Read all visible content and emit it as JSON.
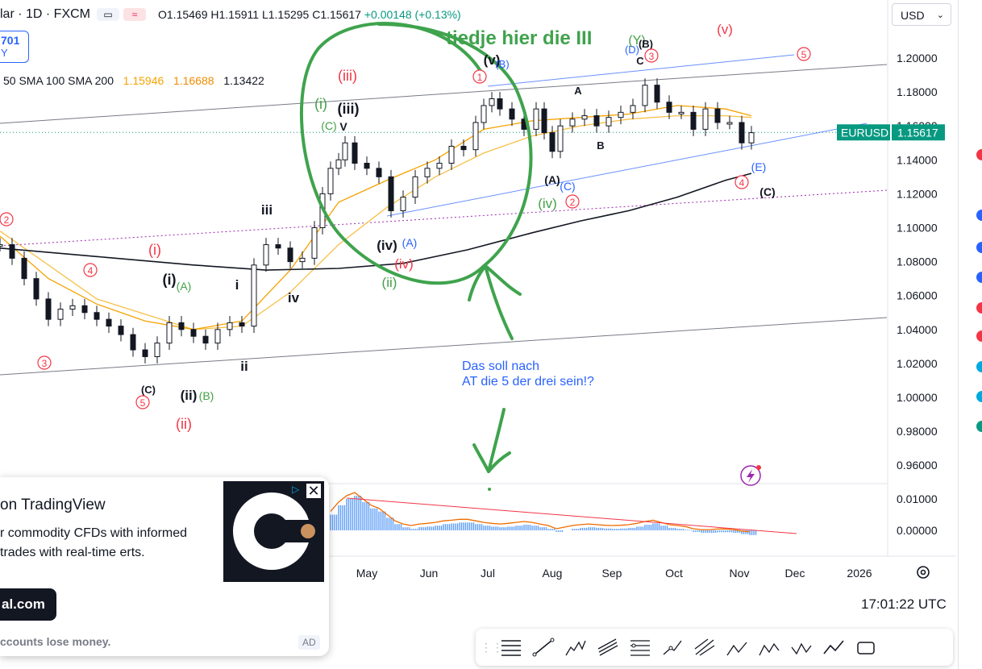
{
  "header": {
    "symbol": "lar · 1D · FXCM",
    "ohlc": "O1.15469  H1.15911  L1.15295  C1.15617",
    "change": "+0.00148 (+0.13%)",
    "badge_value": "701",
    "badge_sub": "Y",
    "sma_labels": "50 SMA 100 SMA 200",
    "sma_50": "1.15946",
    "sma_100": "1.16688",
    "sma_200": "1.13422"
  },
  "currency_select": "USD",
  "clock": "17:01:22 UTC",
  "colors": {
    "up": "#089981",
    "down": "#f23645",
    "candle": "#131722",
    "sma50": "#f5a200",
    "sma100": "#f7c04a",
    "sma200": "#131722",
    "wave_red": "#f23645",
    "wave_green": "#43a047",
    "wave_blue": "#2962ff",
    "annotation_green": "#3fa34d",
    "annotation_blue": "#2962ff"
  },
  "chart_data": {
    "type": "line",
    "symbol_label": "EURUSD",
    "last_price": "1.15617",
    "y_ticks": [
      "1.20000",
      "1.18000",
      "1.16000",
      "1.14000",
      "1.12000",
      "1.10000",
      "1.08000",
      "1.06000",
      "1.04000",
      "1.02000",
      "1.00000",
      "0.98000",
      "0.96000"
    ],
    "y_tick_values": [
      1.2,
      1.18,
      1.16,
      1.14,
      1.12,
      1.1,
      1.08,
      1.06,
      1.04,
      1.02,
      1.0,
      0.98,
      0.96
    ],
    "x_ticks": [
      "May",
      "Jun",
      "Jul",
      "Aug",
      "Sep",
      "Oct",
      "Nov",
      "Dec",
      "2026"
    ],
    "ylim": [
      0.95,
      1.225
    ],
    "price_series": [
      [
        0,
        1.09
      ],
      [
        15,
        1.082
      ],
      [
        30,
        1.07
      ],
      [
        45,
        1.058
      ],
      [
        60,
        1.046
      ],
      [
        75,
        1.052
      ],
      [
        90,
        1.054
      ],
      [
        105,
        1.05
      ],
      [
        120,
        1.046
      ],
      [
        135,
        1.042
      ],
      [
        150,
        1.037
      ],
      [
        165,
        1.028
      ],
      [
        180,
        1.024
      ],
      [
        195,
        1.032
      ],
      [
        210,
        1.044
      ],
      [
        225,
        1.04
      ],
      [
        240,
        1.036
      ],
      [
        255,
        1.032
      ],
      [
        270,
        1.04
      ],
      [
        285,
        1.044
      ],
      [
        300,
        1.042
      ],
      [
        315,
        1.078
      ],
      [
        330,
        1.09
      ],
      [
        345,
        1.088
      ],
      [
        360,
        1.08
      ],
      [
        375,
        1.082
      ],
      [
        390,
        1.1
      ],
      [
        400,
        1.12
      ],
      [
        410,
        1.135
      ],
      [
        420,
        1.14
      ],
      [
        428,
        1.15
      ],
      [
        440,
        1.138
      ],
      [
        455,
        1.135
      ],
      [
        470,
        1.13
      ],
      [
        485,
        1.11
      ],
      [
        500,
        1.118
      ],
      [
        515,
        1.13
      ],
      [
        530,
        1.135
      ],
      [
        545,
        1.138
      ],
      [
        560,
        1.148
      ],
      [
        575,
        1.146
      ],
      [
        590,
        1.162
      ],
      [
        600,
        1.172
      ],
      [
        610,
        1.176
      ],
      [
        620,
        1.17
      ],
      [
        635,
        1.164
      ],
      [
        650,
        1.158
      ],
      [
        665,
        1.17
      ],
      [
        675,
        1.156
      ],
      [
        685,
        1.145
      ],
      [
        695,
        1.16
      ],
      [
        710,
        1.164
      ],
      [
        725,
        1.166
      ],
      [
        740,
        1.16
      ],
      [
        755,
        1.165
      ],
      [
        770,
        1.168
      ],
      [
        785,
        1.172
      ],
      [
        800,
        1.184
      ],
      [
        815,
        1.174
      ],
      [
        830,
        1.168
      ],
      [
        845,
        1.168
      ],
      [
        860,
        1.158
      ],
      [
        875,
        1.17
      ],
      [
        890,
        1.162
      ],
      [
        905,
        1.162
      ],
      [
        920,
        1.15
      ],
      [
        932,
        1.156
      ]
    ],
    "sma50_series": [
      [
        0,
        1.095
      ],
      [
        60,
        1.07
      ],
      [
        120,
        1.055
      ],
      [
        180,
        1.045
      ],
      [
        240,
        1.04
      ],
      [
        300,
        1.045
      ],
      [
        360,
        1.075
      ],
      [
        420,
        1.115
      ],
      [
        480,
        1.128
      ],
      [
        540,
        1.14
      ],
      [
        600,
        1.158
      ],
      [
        660,
        1.163
      ],
      [
        720,
        1.165
      ],
      [
        780,
        1.167
      ],
      [
        840,
        1.172
      ],
      [
        900,
        1.17
      ],
      [
        932,
        1.166
      ]
    ],
    "sma100_series": [
      [
        0,
        1.098
      ],
      [
        120,
        1.058
      ],
      [
        240,
        1.04
      ],
      [
        300,
        1.042
      ],
      [
        360,
        1.062
      ],
      [
        420,
        1.09
      ],
      [
        480,
        1.112
      ],
      [
        540,
        1.13
      ],
      [
        600,
        1.144
      ],
      [
        660,
        1.154
      ],
      [
        720,
        1.16
      ],
      [
        780,
        1.164
      ],
      [
        840,
        1.166
      ],
      [
        900,
        1.166
      ],
      [
        932,
        1.165
      ]
    ],
    "sma200_series": [
      [
        0,
        1.088
      ],
      [
        120,
        1.083
      ],
      [
        240,
        1.078
      ],
      [
        330,
        1.075
      ],
      [
        420,
        1.076
      ],
      [
        500,
        1.079
      ],
      [
        580,
        1.087
      ],
      [
        660,
        1.097
      ],
      [
        720,
        1.104
      ],
      [
        780,
        1.11
      ],
      [
        840,
        1.118
      ],
      [
        900,
        1.128
      ],
      [
        932,
        1.132
      ]
    ],
    "oscillator": {
      "y_ticks": [
        "0.01000",
        "0.00000"
      ],
      "y_tick_values": [
        0.01,
        0.0
      ],
      "hist": [
        [
          410,
          0.005
        ],
        [
          420,
          0.008
        ],
        [
          430,
          0.01
        ],
        [
          440,
          0.011
        ],
        [
          450,
          0.009
        ],
        [
          460,
          0.007
        ],
        [
          470,
          0.006
        ],
        [
          480,
          0.004
        ],
        [
          490,
          0.002
        ],
        [
          500,
          0.001
        ],
        [
          510,
          0.0005
        ],
        [
          520,
          0.001
        ],
        [
          530,
          0.0012
        ],
        [
          540,
          0.0015
        ],
        [
          550,
          0.002
        ],
        [
          560,
          0.0022
        ],
        [
          570,
          0.0025
        ],
        [
          580,
          0.0025
        ],
        [
          590,
          0.002
        ],
        [
          600,
          0.0015
        ],
        [
          610,
          0.0012
        ],
        [
          620,
          0.001
        ],
        [
          630,
          0.0012
        ],
        [
          640,
          0.0015
        ],
        [
          650,
          0.0018
        ],
        [
          660,
          0.0015
        ],
        [
          670,
          0.001
        ],
        [
          680,
          0.0005
        ],
        [
          690,
          -0.0005
        ],
        [
          700,
          0.0
        ],
        [
          710,
          0.0005
        ],
        [
          720,
          0.0008
        ],
        [
          730,
          0.001
        ],
        [
          740,
          0.0008
        ],
        [
          750,
          0.0006
        ],
        [
          760,
          0.0005
        ],
        [
          770,
          0.0006
        ],
        [
          780,
          0.0008
        ],
        [
          790,
          0.0012
        ],
        [
          800,
          0.0018
        ],
        [
          810,
          0.0022
        ],
        [
          820,
          0.0015
        ],
        [
          830,
          0.0008
        ],
        [
          840,
          0.0005
        ],
        [
          850,
          0.0002
        ],
        [
          860,
          -0.0005
        ],
        [
          870,
          -0.0008
        ],
        [
          880,
          -0.0008
        ],
        [
          890,
          -0.0006
        ],
        [
          900,
          -0.0006
        ],
        [
          910,
          -0.0008
        ],
        [
          920,
          -0.0012
        ],
        [
          930,
          -0.0015
        ]
      ]
    }
  },
  "wave_labels": [
    {
      "text": "(iii)",
      "color": "red"
    },
    {
      "text": "(i)",
      "color": "green"
    },
    {
      "text": "(iii)",
      "color": "black"
    },
    {
      "text": "(C)",
      "color": "green"
    },
    {
      "text": "V",
      "color": "black"
    },
    {
      "text": "iii",
      "color": "black"
    },
    {
      "text": "(i)",
      "color": "red"
    },
    {
      "text": "(i)",
      "color": "black"
    },
    {
      "text": "(A)",
      "color": "green"
    },
    {
      "text": "i",
      "color": "black"
    },
    {
      "text": "iv",
      "color": "black"
    },
    {
      "text": "ii",
      "color": "black"
    },
    {
      "text": "(C)",
      "color": "black"
    },
    {
      "text": "(ii)",
      "color": "black"
    },
    {
      "text": "(B)",
      "color": "green"
    },
    {
      "text": "(ii)",
      "color": "red"
    },
    {
      "text": "(iv)",
      "color": "black"
    },
    {
      "text": "(A)",
      "color": "blue"
    },
    {
      "text": "(iv)",
      "color": "red"
    },
    {
      "text": "(ii)",
      "color": "green"
    },
    {
      "text": "(v)",
      "color": "black"
    },
    {
      "text": "(B)",
      "color": "blue"
    },
    {
      "text": "A",
      "color": "black"
    },
    {
      "text": "B",
      "color": "black"
    },
    {
      "text": "C",
      "color": "black"
    },
    {
      "text": "(D)",
      "color": "blue"
    },
    {
      "text": "(Y)",
      "color": "green"
    },
    {
      "text": "(B)",
      "color": "black"
    },
    {
      "text": "(v)",
      "color": "red"
    },
    {
      "text": "(A)",
      "color": "black"
    },
    {
      "text": "(C)",
      "color": "blue"
    },
    {
      "text": "(iv)",
      "color": "green"
    },
    {
      "text": "(E)",
      "color": "blue"
    },
    {
      "text": "(C)",
      "color": "black"
    }
  ],
  "circled_numbers": [
    {
      "text": "2",
      "color": "red"
    },
    {
      "text": "4",
      "color": "red"
    },
    {
      "text": "3",
      "color": "red"
    },
    {
      "text": "5",
      "color": "red"
    },
    {
      "text": "1",
      "color": "red"
    },
    {
      "text": "2",
      "color": "red"
    },
    {
      "text": "3",
      "color": "red"
    },
    {
      "text": "4",
      "color": "red"
    },
    {
      "text": "5",
      "color": "red"
    }
  ],
  "annotations": {
    "green_text": "tiedje hier die III",
    "blue_text_line1": "Das soll nach",
    "blue_text_line2": "AT die 5 der drei sein!?"
  },
  "ad": {
    "title": "on TradingView",
    "desc": "r commodity CFDs with informed trades with real-time erts.",
    "button": "al.com",
    "risk": "ccounts lose money.",
    "label": "AD"
  },
  "toolbar": {
    "tools": [
      "long-position",
      "trend-line",
      "elliott-impulse",
      "parallel-channel",
      "fib-retracement",
      "path",
      "pitchfork",
      "elliott-abc",
      "elliott-wxy",
      "elliott-ae",
      "polyline",
      "rectangle"
    ]
  }
}
